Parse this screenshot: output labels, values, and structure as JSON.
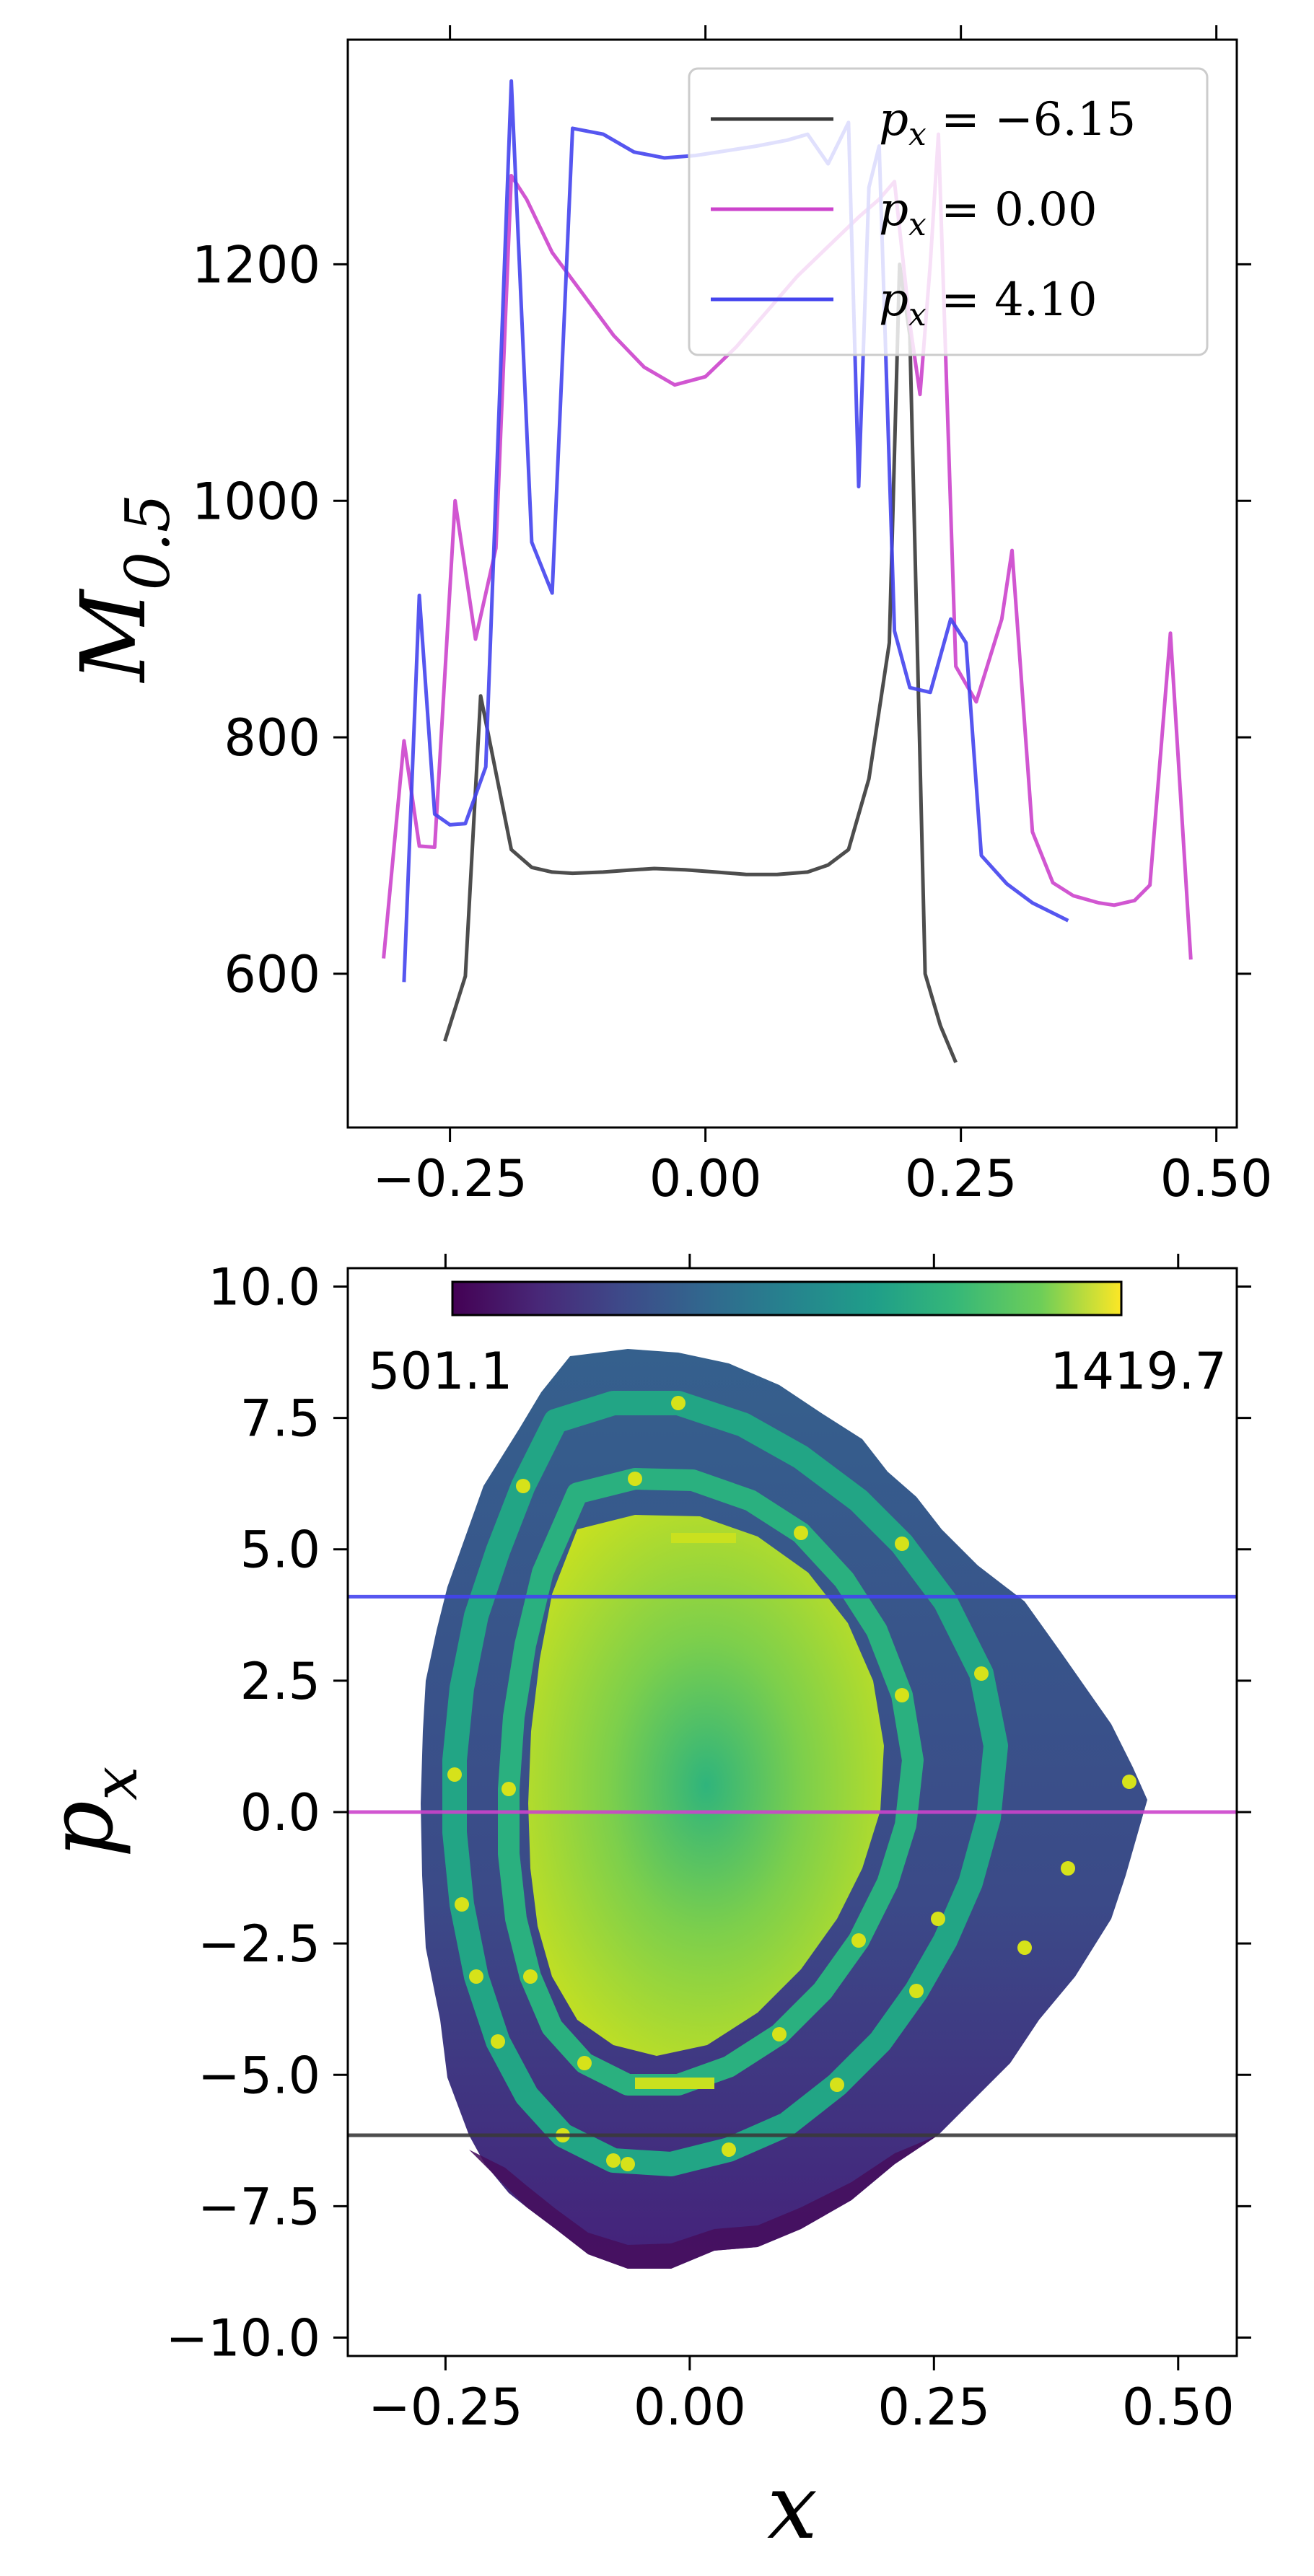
{
  "chart_data": [
    {
      "type": "line",
      "xlabel": "",
      "ylabel": "M_{0.5}",
      "ylabel_main": "M",
      "ylabel_sub": "0.5",
      "xlim": [
        -0.35,
        0.52
      ],
      "ylim": [
        470,
        1390
      ],
      "xticks": [
        -0.25,
        0.0,
        0.25,
        0.5
      ],
      "xtick_labels": [
        "−0.25",
        "0.00",
        "0.25",
        "0.50"
      ],
      "yticks": [
        600,
        800,
        1000,
        1200
      ],
      "ytick_labels": [
        "600",
        "800",
        "1000",
        "1200"
      ],
      "legend_placement": "top-right",
      "series": [
        {
          "name": "p_x = −6.15",
          "legend_main": "p",
          "legend_sub": "x",
          "legend_rest": " = −6.15",
          "color": "#3a3a3a",
          "points": [
            [
              -0.255,
              543
            ],
            [
              -0.235,
              598
            ],
            [
              -0.22,
              835
            ],
            [
              -0.19,
              705
            ],
            [
              -0.17,
              690
            ],
            [
              -0.15,
              686
            ],
            [
              -0.13,
              685
            ],
            [
              -0.1,
              686
            ],
            [
              -0.07,
              688
            ],
            [
              -0.05,
              689
            ],
            [
              -0.02,
              688
            ],
            [
              0.01,
              686
            ],
            [
              0.04,
              684
            ],
            [
              0.07,
              684
            ],
            [
              0.1,
              686
            ],
            [
              0.12,
              692
            ],
            [
              0.14,
              705
            ],
            [
              0.16,
              765
            ],
            [
              0.18,
              880
            ],
            [
              0.19,
              1200
            ],
            [
              0.2,
              1140
            ],
            [
              0.215,
              600
            ],
            [
              0.23,
              556
            ],
            [
              0.245,
              525
            ]
          ]
        },
        {
          "name": "p_x = 0.00",
          "legend_main": "p",
          "legend_sub": "x",
          "legend_rest": " = 0.00",
          "color": "#cc44cc",
          "points": [
            [
              -0.315,
              613
            ],
            [
              -0.295,
              797
            ],
            [
              -0.28,
              708
            ],
            [
              -0.265,
              707
            ],
            [
              -0.245,
              1000
            ],
            [
              -0.225,
              883
            ],
            [
              -0.205,
              960
            ],
            [
              -0.19,
              1275
            ],
            [
              -0.175,
              1255
            ],
            [
              -0.15,
              1210
            ],
            [
              -0.12,
              1175
            ],
            [
              -0.09,
              1140
            ],
            [
              -0.06,
              1113
            ],
            [
              -0.03,
              1098
            ],
            [
              0.0,
              1105
            ],
            [
              0.03,
              1130
            ],
            [
              0.06,
              1160
            ],
            [
              0.09,
              1190
            ],
            [
              0.12,
              1215
            ],
            [
              0.15,
              1240
            ],
            [
              0.17,
              1255
            ],
            [
              0.185,
              1270
            ],
            [
              0.2,
              1150
            ],
            [
              0.21,
              1090
            ],
            [
              0.22,
              1200
            ],
            [
              0.228,
              1310
            ],
            [
              0.245,
              860
            ],
            [
              0.265,
              830
            ],
            [
              0.29,
              900
            ],
            [
              0.3,
              958
            ],
            [
              0.32,
              720
            ],
            [
              0.34,
              677
            ],
            [
              0.36,
              666
            ],
            [
              0.385,
              660
            ],
            [
              0.4,
              658
            ],
            [
              0.42,
              662
            ],
            [
              0.435,
              675
            ],
            [
              0.455,
              888
            ],
            [
              0.475,
              612
            ]
          ]
        },
        {
          "name": "p_x = 4.10",
          "legend_main": "p",
          "legend_sub": "x",
          "legend_rest": " = 4.10",
          "color": "#4444ee",
          "points": [
            [
              -0.295,
              593
            ],
            [
              -0.28,
              920
            ],
            [
              -0.265,
              735
            ],
            [
              -0.25,
              726
            ],
            [
              -0.235,
              727
            ],
            [
              -0.215,
              775
            ],
            [
              -0.19,
              1355
            ],
            [
              -0.17,
              965
            ],
            [
              -0.15,
              922
            ],
            [
              -0.13,
              1315
            ],
            [
              -0.1,
              1310
            ],
            [
              -0.07,
              1295
            ],
            [
              -0.04,
              1290
            ],
            [
              -0.01,
              1292
            ],
            [
              0.02,
              1296
            ],
            [
              0.05,
              1300
            ],
            [
              0.08,
              1305
            ],
            [
              0.1,
              1310
            ],
            [
              0.12,
              1285
            ],
            [
              0.14,
              1320
            ],
            [
              0.15,
              1012
            ],
            [
              0.16,
              1265
            ],
            [
              0.17,
              1300
            ],
            [
              0.185,
              890
            ],
            [
              0.2,
              842
            ],
            [
              0.22,
              838
            ],
            [
              0.24,
              900
            ],
            [
              0.255,
              880
            ],
            [
              0.27,
              700
            ],
            [
              0.295,
              676
            ],
            [
              0.32,
              660
            ],
            [
              0.355,
              645
            ]
          ]
        }
      ]
    },
    {
      "type": "heatmap",
      "xlabel": "x",
      "ylabel": "p_x",
      "ylabel_main": "p",
      "ylabel_sub": "x",
      "xlim": [
        -0.35,
        0.56
      ],
      "ylim": [
        -10.35,
        10.35
      ],
      "xticks": [
        -0.25,
        0.0,
        0.25,
        0.5
      ],
      "xtick_labels": [
        "−0.25",
        "0.00",
        "0.25",
        "0.50"
      ],
      "yticks": [
        10.0,
        7.5,
        5.0,
        2.5,
        0.0,
        -2.5,
        -5.0,
        -7.5,
        -10.0
      ],
      "ytick_labels": [
        "10.0",
        "7.5",
        "5.0",
        "2.5",
        "0.0",
        "−2.5",
        "−5.0",
        "−7.5",
        "−10.0"
      ],
      "colormap": "viridis",
      "colorbar_min": 501.1,
      "colorbar_max": 1419.7,
      "colorbar_min_label": "501.1",
      "colorbar_max_label": "1419.7",
      "colorbar_placement": "top",
      "hlines": [
        {
          "y": 4.1,
          "color": "#4444ee"
        },
        {
          "y": 0.0,
          "color": "#cc44cc"
        },
        {
          "y": -6.15,
          "color": "#3a3a3a"
        }
      ],
      "colors": {
        "outer_region": "#34618d",
        "outer_bottom": "#3b2c7a",
        "bottom_edge": "#44065a",
        "ring": "#23a884",
        "ring_highlight": "#d6e21a",
        "core_edge": "#bfdf25",
        "core_center": "#2fb47c"
      }
    }
  ]
}
